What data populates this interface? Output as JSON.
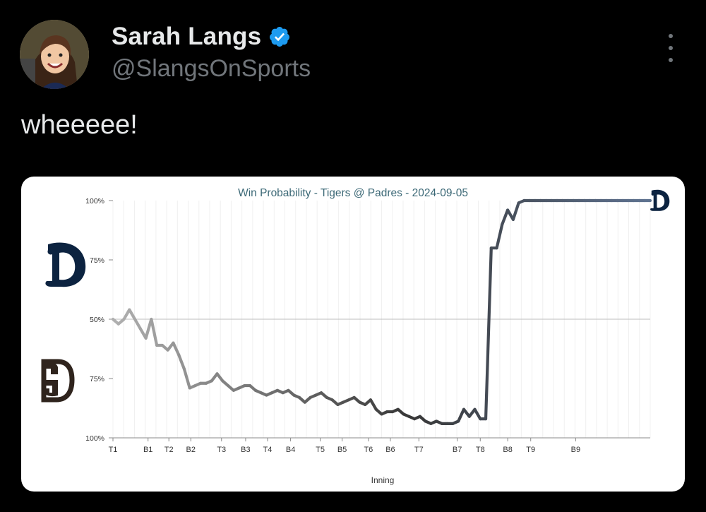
{
  "tweet": {
    "author_name": "Sarah Langs",
    "handle": "@SlangsOnSports",
    "text": "wheeeee!",
    "verified": true,
    "verified_color": "#1d9bf0",
    "more_icon": "more-vertical-icon"
  },
  "chart_data": {
    "type": "line",
    "title": "Win Probability - Tigers @ Padres - 2024-09-05",
    "xlabel": "Inning",
    "y_tick_labels": [
      "100%",
      "75%",
      "50%",
      "75%",
      "100%"
    ],
    "y_range": [
      0,
      100
    ],
    "y_meaning": "Tigers win probability (%)",
    "top_team": "Tigers",
    "bottom_team": "Padres",
    "innings": [
      "T1",
      "B1",
      "T2",
      "B2",
      "T3",
      "B3",
      "T4",
      "B4",
      "T5",
      "B5",
      "T6",
      "B6",
      "T7",
      "B7",
      "T8",
      "B8",
      "T9",
      "B9"
    ],
    "series": [
      {
        "x": [
          0,
          0.5,
          1,
          1.5,
          2,
          2.5,
          3,
          3.5,
          4,
          4.5,
          5,
          5.5,
          6,
          6.5,
          7,
          7.5,
          8,
          8.5,
          9,
          9.5,
          10,
          10.5,
          11,
          11.5,
          12,
          12.5,
          13,
          13.5,
          14,
          14.5,
          15,
          15.5,
          16,
          16.5,
          17,
          17.5,
          18,
          18.5,
          19,
          19.5,
          20,
          20.5,
          21,
          21.5,
          22,
          22.5,
          23,
          23.5,
          24,
          24.5,
          25,
          25.5,
          26,
          26.5,
          27,
          27.5,
          28,
          28.5,
          29,
          29.5,
          30,
          30.5,
          31,
          31.5,
          32,
          32.5,
          33,
          33.5,
          34,
          34.5,
          35,
          35.5,
          36,
          36.5,
          37,
          37.5,
          38,
          38.5,
          39,
          39.5,
          40,
          40.5,
          41,
          41.5,
          42,
          42.5,
          43,
          43.5,
          44,
          44.5,
          45,
          45.5,
          46,
          46.5,
          47,
          47.5,
          48,
          48.5,
          49
        ],
        "y": [
          50,
          48,
          50,
          54,
          50,
          46,
          42,
          50,
          39,
          39,
          37,
          40,
          35,
          29,
          21,
          22,
          23,
          23,
          24,
          27,
          24,
          22,
          20,
          21,
          22,
          22,
          20,
          19,
          18,
          19,
          20,
          19,
          20,
          18,
          17,
          15,
          17,
          18,
          19,
          17,
          16,
          14,
          15,
          16,
          17,
          15,
          14,
          16,
          12,
          10,
          11,
          11,
          12,
          10,
          9,
          8,
          9,
          7,
          6,
          7,
          6,
          6,
          6,
          7,
          12,
          9,
          12,
          8,
          8,
          80,
          80,
          90,
          96,
          92,
          99,
          100,
          100,
          100,
          100,
          100,
          100,
          100,
          100,
          100,
          100,
          100,
          100,
          100,
          100,
          100,
          100,
          100,
          100,
          100,
          100,
          100,
          100,
          100,
          100
        ]
      }
    ],
    "grid": "vertical-lines",
    "midline": 50
  }
}
